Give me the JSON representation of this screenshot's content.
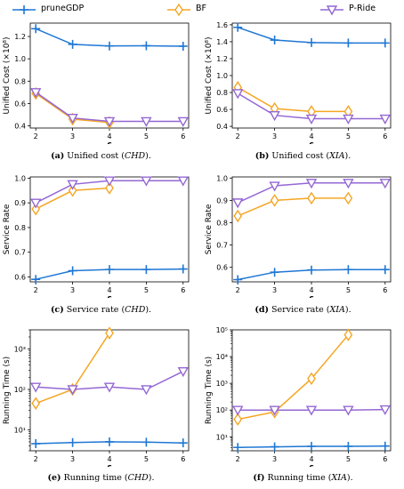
{
  "legend": [
    {
      "name": "pruneGDP",
      "color": "#1f77d4",
      "marker": "plus"
    },
    {
      "name": "BF",
      "color": "#f5a623",
      "marker": "diamond"
    },
    {
      "name": "P-Ride",
      "color": "#9467d4",
      "marker": "triangle-down"
    }
  ],
  "captions": [
    {
      "label": "(a)",
      "text": " Unified cost (",
      "em": "CHD",
      "tail": ")."
    },
    {
      "label": "(b)",
      "text": " Unified cost (",
      "em": "XIA",
      "tail": ")."
    },
    {
      "label": "(c)",
      "text": " Service rate (",
      "em": "CHD",
      "tail": ")."
    },
    {
      "label": "(d)",
      "text": " Service rate (",
      "em": "XIA",
      "tail": ")."
    },
    {
      "label": "(e)",
      "text": " Running time (",
      "em": "CHD",
      "tail": ")."
    },
    {
      "label": "(f)",
      "text": " Running time (",
      "em": "XIA",
      "tail": ")."
    }
  ],
  "chart_data": [
    {
      "type": "line",
      "ylabel": "Unified Cost (×10⁸)",
      "xlabel": "c",
      "yscale": "linear",
      "x": [
        2,
        3,
        4,
        5,
        6
      ],
      "ylim": [
        0.38,
        1.32
      ],
      "yticks": [
        0.4,
        0.6,
        0.8,
        1.0,
        1.2
      ],
      "yticklabels": [
        "0.4",
        "0.6",
        "0.8",
        "1.0",
        "1.2"
      ],
      "series": [
        {
          "name": "pruneGDP",
          "x": [
            2,
            3,
            4,
            5,
            6
          ],
          "values": [
            1.27,
            1.13,
            1.115,
            1.117,
            1.113
          ]
        },
        {
          "name": "BF",
          "x": [
            2,
            3,
            4
          ],
          "values": [
            0.69,
            0.46,
            0.43
          ]
        },
        {
          "name": "P-Ride",
          "x": [
            2,
            3,
            4,
            5,
            6
          ],
          "values": [
            0.7,
            0.47,
            0.44,
            0.44,
            0.44
          ]
        }
      ]
    },
    {
      "type": "line",
      "ylabel": "Unified Cost (×10⁸)",
      "xlabel": "c",
      "yscale": "linear",
      "x": [
        2,
        3,
        4,
        5,
        6
      ],
      "ylim": [
        0.38,
        1.62
      ],
      "yticks": [
        0.4,
        0.6,
        0.8,
        1.0,
        1.2,
        1.4,
        1.6
      ],
      "yticklabels": [
        "0.4",
        "0.6",
        "0.8",
        "1.0",
        "1.2",
        "1.4",
        "1.6"
      ],
      "series": [
        {
          "name": "pruneGDP",
          "x": [
            2,
            3,
            4,
            5,
            6
          ],
          "values": [
            1.57,
            1.42,
            1.39,
            1.385,
            1.385
          ]
        },
        {
          "name": "BF",
          "x": [
            2,
            3,
            4,
            5
          ],
          "values": [
            0.86,
            0.61,
            0.575,
            0.575
          ]
        },
        {
          "name": "P-Ride",
          "x": [
            2,
            3,
            4,
            5,
            6
          ],
          "values": [
            0.79,
            0.53,
            0.49,
            0.49,
            0.49
          ]
        }
      ]
    },
    {
      "type": "line",
      "ylabel": "Service Rate",
      "xlabel": "c",
      "yscale": "linear",
      "x": [
        2,
        3,
        4,
        5,
        6
      ],
      "ylim": [
        0.58,
        1.005
      ],
      "yticks": [
        0.6,
        0.7,
        0.8,
        0.9,
        1.0
      ],
      "yticklabels": [
        "0.6",
        "0.7",
        "0.8",
        "0.9",
        "1.0"
      ],
      "series": [
        {
          "name": "pruneGDP",
          "x": [
            2,
            3,
            4,
            5,
            6
          ],
          "values": [
            0.59,
            0.625,
            0.63,
            0.63,
            0.632
          ]
        },
        {
          "name": "BF",
          "x": [
            2,
            3,
            4
          ],
          "values": [
            0.875,
            0.95,
            0.96
          ]
        },
        {
          "name": "P-Ride",
          "x": [
            2,
            3,
            4,
            5,
            6
          ],
          "values": [
            0.9,
            0.975,
            0.99,
            0.99,
            0.99
          ]
        }
      ]
    },
    {
      "type": "line",
      "ylabel": "Service Rate",
      "xlabel": "c",
      "yscale": "linear",
      "x": [
        2,
        3,
        4,
        5,
        6
      ],
      "ylim": [
        0.535,
        1.005
      ],
      "yticks": [
        0.6,
        0.7,
        0.8,
        0.9,
        1.0
      ],
      "yticklabels": [
        "0.6",
        "0.7",
        "0.8",
        "0.9",
        "1.0"
      ],
      "series": [
        {
          "name": "pruneGDP",
          "x": [
            2,
            3,
            4,
            5,
            6
          ],
          "values": [
            0.545,
            0.578,
            0.588,
            0.59,
            0.59
          ]
        },
        {
          "name": "BF",
          "x": [
            2,
            3,
            4,
            5
          ],
          "values": [
            0.83,
            0.9,
            0.91,
            0.91
          ]
        },
        {
          "name": "P-Ride",
          "x": [
            2,
            3,
            4,
            5,
            6
          ],
          "values": [
            0.89,
            0.965,
            0.978,
            0.978,
            0.978
          ]
        }
      ]
    },
    {
      "type": "line",
      "ylabel": "Running Time (s)",
      "xlabel": "c",
      "yscale": "log",
      "x": [
        2,
        3,
        4,
        5,
        6
      ],
      "ylim": [
        3,
        3000
      ],
      "yticks": [
        10,
        100,
        1000
      ],
      "yticklabels": [
        "10¹",
        "10²",
        "10³"
      ],
      "series": [
        {
          "name": "pruneGDP",
          "x": [
            2,
            3,
            4,
            5,
            6
          ],
          "values": [
            4.5,
            4.8,
            5.0,
            4.9,
            4.7
          ]
        },
        {
          "name": "BF",
          "x": [
            2,
            3,
            4
          ],
          "values": [
            45,
            100,
            2500
          ]
        },
        {
          "name": "P-Ride",
          "x": [
            2,
            3,
            4,
            5,
            6
          ],
          "values": [
            115,
            100,
            115,
            100,
            280
          ]
        }
      ]
    },
    {
      "type": "line",
      "ylabel": "Running Time (s)",
      "xlabel": "c",
      "yscale": "log",
      "x": [
        2,
        3,
        4,
        5,
        6
      ],
      "ylim": [
        3,
        100000
      ],
      "yticks": [
        10,
        100,
        1000,
        10000,
        100000
      ],
      "yticklabels": [
        "10¹",
        "10²",
        "10³",
        "10⁴",
        "10⁵"
      ],
      "series": [
        {
          "name": "pruneGDP",
          "x": [
            2,
            3,
            4,
            5,
            6
          ],
          "values": [
            4.0,
            4.2,
            4.4,
            4.4,
            4.5
          ]
        },
        {
          "name": "BF",
          "x": [
            2,
            3,
            4,
            5
          ],
          "values": [
            45,
            85,
            1500,
            65000
          ]
        },
        {
          "name": "P-Ride",
          "x": [
            2,
            3,
            4,
            5,
            6
          ],
          "values": [
            100,
            100,
            100,
            100,
            105
          ]
        }
      ]
    }
  ]
}
